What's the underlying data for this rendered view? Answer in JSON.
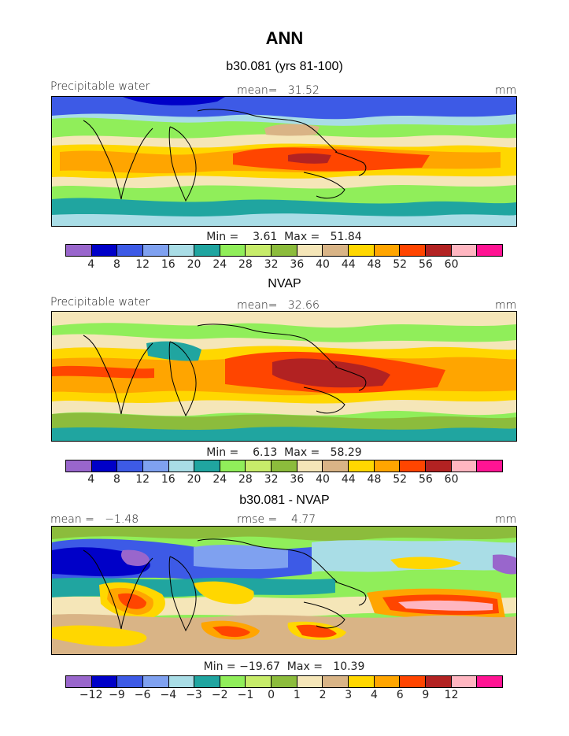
{
  "header": {
    "title": "ANN"
  },
  "panels": [
    {
      "title": "b30.081 (yrs 81-100)",
      "left_label": "Precipitable water",
      "center_label": "mean=   31.52",
      "right_label": "mm",
      "minmax": "Min =    3.61  Max =   51.84",
      "palette": "abs"
    },
    {
      "title": "NVAP",
      "left_label": "Precipitable water",
      "center_label": "mean=   32.66",
      "right_label": "mm",
      "minmax": "Min =    6.13  Max =   58.29",
      "palette": "abs"
    },
    {
      "title": "b30.081 - NVAP",
      "left_label": "mean =   −1.48",
      "center_label": "rmse =    4.77",
      "right_label": "mm",
      "minmax": "Min = −19.67  Max =   10.39",
      "palette": "diff"
    }
  ],
  "colorbars": {
    "abs": {
      "colors": [
        "#9966cc",
        "#0000c8",
        "#3d5ae6",
        "#7fa1f0",
        "#a9dde6",
        "#20a5a0",
        "#90ee5a",
        "#c7ec6a",
        "#8cbc3c",
        "#f5e6b8",
        "#d9b486",
        "#ffd700",
        "#ffa500",
        "#ff4500",
        "#b22222",
        "#ffb6c1",
        "#ff1493"
      ],
      "ticks": [
        "4",
        "8",
        "12",
        "16",
        "20",
        "24",
        "28",
        "32",
        "36",
        "40",
        "44",
        "48",
        "52",
        "56",
        "60"
      ]
    },
    "diff": {
      "colors": [
        "#9966cc",
        "#0000c8",
        "#3d5ae6",
        "#7fa1f0",
        "#a9dde6",
        "#20a5a0",
        "#90ee5a",
        "#c7ec6a",
        "#8cbc3c",
        "#f5e6b8",
        "#d9b486",
        "#ffd700",
        "#ffa500",
        "#ff4500",
        "#b22222",
        "#ffb6c1",
        "#ff1493"
      ],
      "ticks": [
        "−12",
        "−9",
        "−6",
        "−4",
        "−3",
        "−2",
        "−1",
        "0",
        "1",
        "2",
        "3",
        "4",
        "6",
        "9",
        "12"
      ]
    }
  },
  "map_colors": {
    "blue_dark": "#0000c8",
    "blue": "#3d5ae6",
    "blue_light": "#7fa1f0",
    "cyan": "#a9dde6",
    "teal": "#20a5a0",
    "green_light": "#90ee5a",
    "green": "#8cbc3c",
    "cream": "#f5e6b8",
    "tan": "#d9b486",
    "yellow": "#ffd700",
    "orange": "#ffa500",
    "red": "#ff4500",
    "dark_red": "#b22222",
    "pink": "#ffb6c1",
    "purple": "#9966cc",
    "coast": "#000000"
  }
}
